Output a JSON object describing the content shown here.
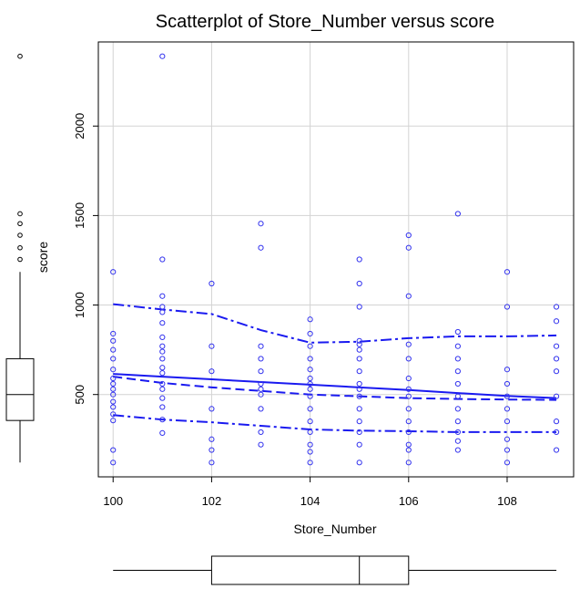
{
  "chart_data": {
    "type": "scatter",
    "title": "Scatterplot of Store_Number versus score",
    "xlabel": "Store_Number",
    "ylabel": "score",
    "xlim": [
      99.7,
      109.35
    ],
    "ylim": [
      40,
      2470
    ],
    "x_ticks": [
      100,
      102,
      104,
      106,
      108
    ],
    "y_ticks": [
      500,
      1000,
      1500,
      2000
    ],
    "grid": true,
    "colors": {
      "points": "#3333ee",
      "lines": "#1a1af0",
      "axes": "#000000",
      "grid": "#d3d3d3"
    },
    "points": [
      [
        100,
        120
      ],
      [
        100,
        190
      ],
      [
        100,
        355
      ],
      [
        100,
        390
      ],
      [
        100,
        430
      ],
      [
        100,
        460
      ],
      [
        100,
        500
      ],
      [
        100,
        530
      ],
      [
        100,
        560
      ],
      [
        100,
        590
      ],
      [
        100,
        640
      ],
      [
        100,
        700
      ],
      [
        100,
        750
      ],
      [
        100,
        800
      ],
      [
        100,
        840
      ],
      [
        100,
        1185
      ],
      [
        101,
        285
      ],
      [
        101,
        360
      ],
      [
        101,
        430
      ],
      [
        101,
        480
      ],
      [
        101,
        530
      ],
      [
        101,
        560
      ],
      [
        101,
        620
      ],
      [
        101,
        650
      ],
      [
        101,
        700
      ],
      [
        101,
        740
      ],
      [
        101,
        770
      ],
      [
        101,
        820
      ],
      [
        101,
        900
      ],
      [
        101,
        960
      ],
      [
        101,
        990
      ],
      [
        101,
        1050
      ],
      [
        101,
        1255
      ],
      [
        101,
        2390
      ],
      [
        102,
        120
      ],
      [
        102,
        190
      ],
      [
        102,
        250
      ],
      [
        102,
        420
      ],
      [
        102,
        630
      ],
      [
        102,
        770
      ],
      [
        102,
        1120
      ],
      [
        103,
        220
      ],
      [
        103,
        290
      ],
      [
        103,
        420
      ],
      [
        103,
        500
      ],
      [
        103,
        530
      ],
      [
        103,
        560
      ],
      [
        103,
        630
      ],
      [
        103,
        700
      ],
      [
        103,
        770
      ],
      [
        103,
        1320
      ],
      [
        103,
        1455
      ],
      [
        104,
        120
      ],
      [
        104,
        180
      ],
      [
        104,
        220
      ],
      [
        104,
        290
      ],
      [
        104,
        350
      ],
      [
        104,
        420
      ],
      [
        104,
        490
      ],
      [
        104,
        530
      ],
      [
        104,
        560
      ],
      [
        104,
        590
      ],
      [
        104,
        640
      ],
      [
        104,
        700
      ],
      [
        104,
        770
      ],
      [
        104,
        840
      ],
      [
        104,
        920
      ],
      [
        105,
        120
      ],
      [
        105,
        220
      ],
      [
        105,
        290
      ],
      [
        105,
        350
      ],
      [
        105,
        420
      ],
      [
        105,
        490
      ],
      [
        105,
        530
      ],
      [
        105,
        560
      ],
      [
        105,
        630
      ],
      [
        105,
        700
      ],
      [
        105,
        750
      ],
      [
        105,
        780
      ],
      [
        105,
        800
      ],
      [
        105,
        990
      ],
      [
        105,
        1120
      ],
      [
        105,
        1255
      ],
      [
        106,
        120
      ],
      [
        106,
        190
      ],
      [
        106,
        220
      ],
      [
        106,
        290
      ],
      [
        106,
        350
      ],
      [
        106,
        420
      ],
      [
        106,
        490
      ],
      [
        106,
        530
      ],
      [
        106,
        590
      ],
      [
        106,
        700
      ],
      [
        106,
        780
      ],
      [
        106,
        1050
      ],
      [
        106,
        1320
      ],
      [
        106,
        1390
      ],
      [
        107,
        190
      ],
      [
        107,
        240
      ],
      [
        107,
        290
      ],
      [
        107,
        350
      ],
      [
        107,
        420
      ],
      [
        107,
        490
      ],
      [
        107,
        560
      ],
      [
        107,
        630
      ],
      [
        107,
        700
      ],
      [
        107,
        770
      ],
      [
        107,
        850
      ],
      [
        107,
        1510
      ],
      [
        108,
        120
      ],
      [
        108,
        190
      ],
      [
        108,
        250
      ],
      [
        108,
        350
      ],
      [
        108,
        420
      ],
      [
        108,
        490
      ],
      [
        108,
        560
      ],
      [
        108,
        640
      ],
      [
        108,
        990
      ],
      [
        108,
        1185
      ],
      [
        109,
        190
      ],
      [
        109,
        290
      ],
      [
        109,
        350
      ],
      [
        109,
        490
      ],
      [
        109,
        630
      ],
      [
        109,
        700
      ],
      [
        109,
        770
      ],
      [
        109,
        910
      ],
      [
        109,
        990
      ]
    ],
    "smooth_lines": [
      {
        "style": "solid",
        "points": [
          [
            100,
            615
          ],
          [
            101,
            600
          ],
          [
            102,
            585
          ],
          [
            103,
            570
          ],
          [
            104,
            555
          ],
          [
            105,
            540
          ],
          [
            106,
            525
          ],
          [
            107,
            508
          ],
          [
            108,
            492
          ],
          [
            109,
            480
          ]
        ]
      },
      {
        "style": "dashed",
        "points": [
          [
            100,
            600
          ],
          [
            101,
            565
          ],
          [
            102,
            540
          ],
          [
            103,
            520
          ],
          [
            104,
            500
          ],
          [
            105,
            490
          ],
          [
            106,
            480
          ],
          [
            107,
            475
          ],
          [
            108,
            472
          ],
          [
            109,
            470
          ]
        ]
      },
      {
        "style": "dashdot",
        "points": [
          [
            100,
            1005
          ],
          [
            101,
            975
          ],
          [
            102,
            950
          ],
          [
            103,
            860
          ],
          [
            104,
            790
          ],
          [
            105,
            795
          ],
          [
            106,
            815
          ],
          [
            107,
            825
          ],
          [
            108,
            825
          ],
          [
            109,
            830
          ]
        ]
      },
      {
        "style": "dashdot",
        "points": [
          [
            100,
            385
          ],
          [
            101,
            360
          ],
          [
            102,
            345
          ],
          [
            103,
            325
          ],
          [
            104,
            305
          ],
          [
            105,
            298
          ],
          [
            106,
            295
          ],
          [
            107,
            290
          ],
          [
            108,
            290
          ],
          [
            109,
            290
          ]
        ]
      }
    ],
    "boxplot_y": {
      "min": 120,
      "q1": 355,
      "median": 500,
      "q3": 700,
      "whisker_high": 1185,
      "outliers": [
        1255,
        1320,
        1390,
        1455,
        1510,
        2390
      ]
    },
    "boxplot_x": {
      "min": 100,
      "q1": 102,
      "median": 105,
      "q3": 106,
      "max": 109
    }
  }
}
